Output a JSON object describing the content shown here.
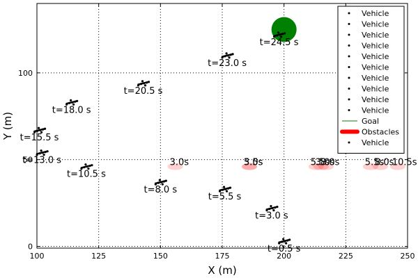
{
  "chart_data": {
    "type": "scatter",
    "xlabel": "X (m)",
    "ylabel": "Y (m)",
    "xlim": [
      100,
      250
    ],
    "ylim": [
      -1,
      140
    ],
    "grid": true,
    "grid_style": "dotted",
    "x_ticks": [
      100,
      125,
      150,
      175,
      200,
      225,
      250
    ],
    "y_ticks": [
      0,
      50,
      100
    ],
    "legend_position": "top-right",
    "legend": [
      {
        "label": "Vehicle",
        "marker": "dot"
      },
      {
        "label": "Vehicle",
        "marker": "dot"
      },
      {
        "label": "Vehicle",
        "marker": "dot"
      },
      {
        "label": "Vehicle",
        "marker": "dot"
      },
      {
        "label": "Vehicle",
        "marker": "dot"
      },
      {
        "label": "Vehicle",
        "marker": "dot"
      },
      {
        "label": "Vehicle",
        "marker": "dot"
      },
      {
        "label": "Vehicle",
        "marker": "dot"
      },
      {
        "label": "Vehicle",
        "marker": "dot"
      },
      {
        "label": "Vehicle",
        "marker": "dot"
      },
      {
        "label": "Goal",
        "marker": "line"
      },
      {
        "label": "Obstacles",
        "marker": "thick-line"
      },
      {
        "label": "Vehicle",
        "marker": "dot"
      }
    ],
    "goal": {
      "x": 200,
      "y": 125,
      "color": "#008000"
    },
    "vehicles": [
      {
        "x": 200,
        "y": 3,
        "label": "t=0.5 s"
      },
      {
        "x": 195,
        "y": 22,
        "label": "t=3.0 s"
      },
      {
        "x": 176,
        "y": 33,
        "label": "t=5.5 s"
      },
      {
        "x": 150,
        "y": 37,
        "label": "t=8.0 s"
      },
      {
        "x": 120,
        "y": 46,
        "label": "t=10.5 s"
      },
      {
        "x": 102,
        "y": 54,
        "label": "t=13.0 s"
      },
      {
        "x": 101,
        "y": 67,
        "label": "t=15.5 s"
      },
      {
        "x": 114,
        "y": 83,
        "label": "t=18.0 s"
      },
      {
        "x": 143,
        "y": 94,
        "label": "t=20.5 s"
      },
      {
        "x": 177,
        "y": 110,
        "label": "t=23.0 s"
      },
      {
        "x": 198,
        "y": 122,
        "label": "t=24.5 s"
      }
    ],
    "obstacles": [
      {
        "x": 156,
        "y": 46,
        "label": "3.0s"
      },
      {
        "x": 186,
        "y": 46,
        "label": "3.0s"
      },
      {
        "x": 186,
        "y": 46,
        "label": "5.5s"
      },
      {
        "x": 213,
        "y": 46,
        "label": "5.5s"
      },
      {
        "x": 215,
        "y": 46,
        "label": "3.0s"
      },
      {
        "x": 217,
        "y": 46,
        "label": "8.0s"
      },
      {
        "x": 235,
        "y": 46,
        "label": "5.5s"
      },
      {
        "x": 239,
        "y": 46,
        "label": "8.0s"
      },
      {
        "x": 246,
        "y": 46,
        "label": "10.5s"
      }
    ],
    "colors": {
      "vehicle": "#000000",
      "goal": "#008000",
      "obstacle": "#ff0000",
      "grid": "#000000"
    }
  }
}
